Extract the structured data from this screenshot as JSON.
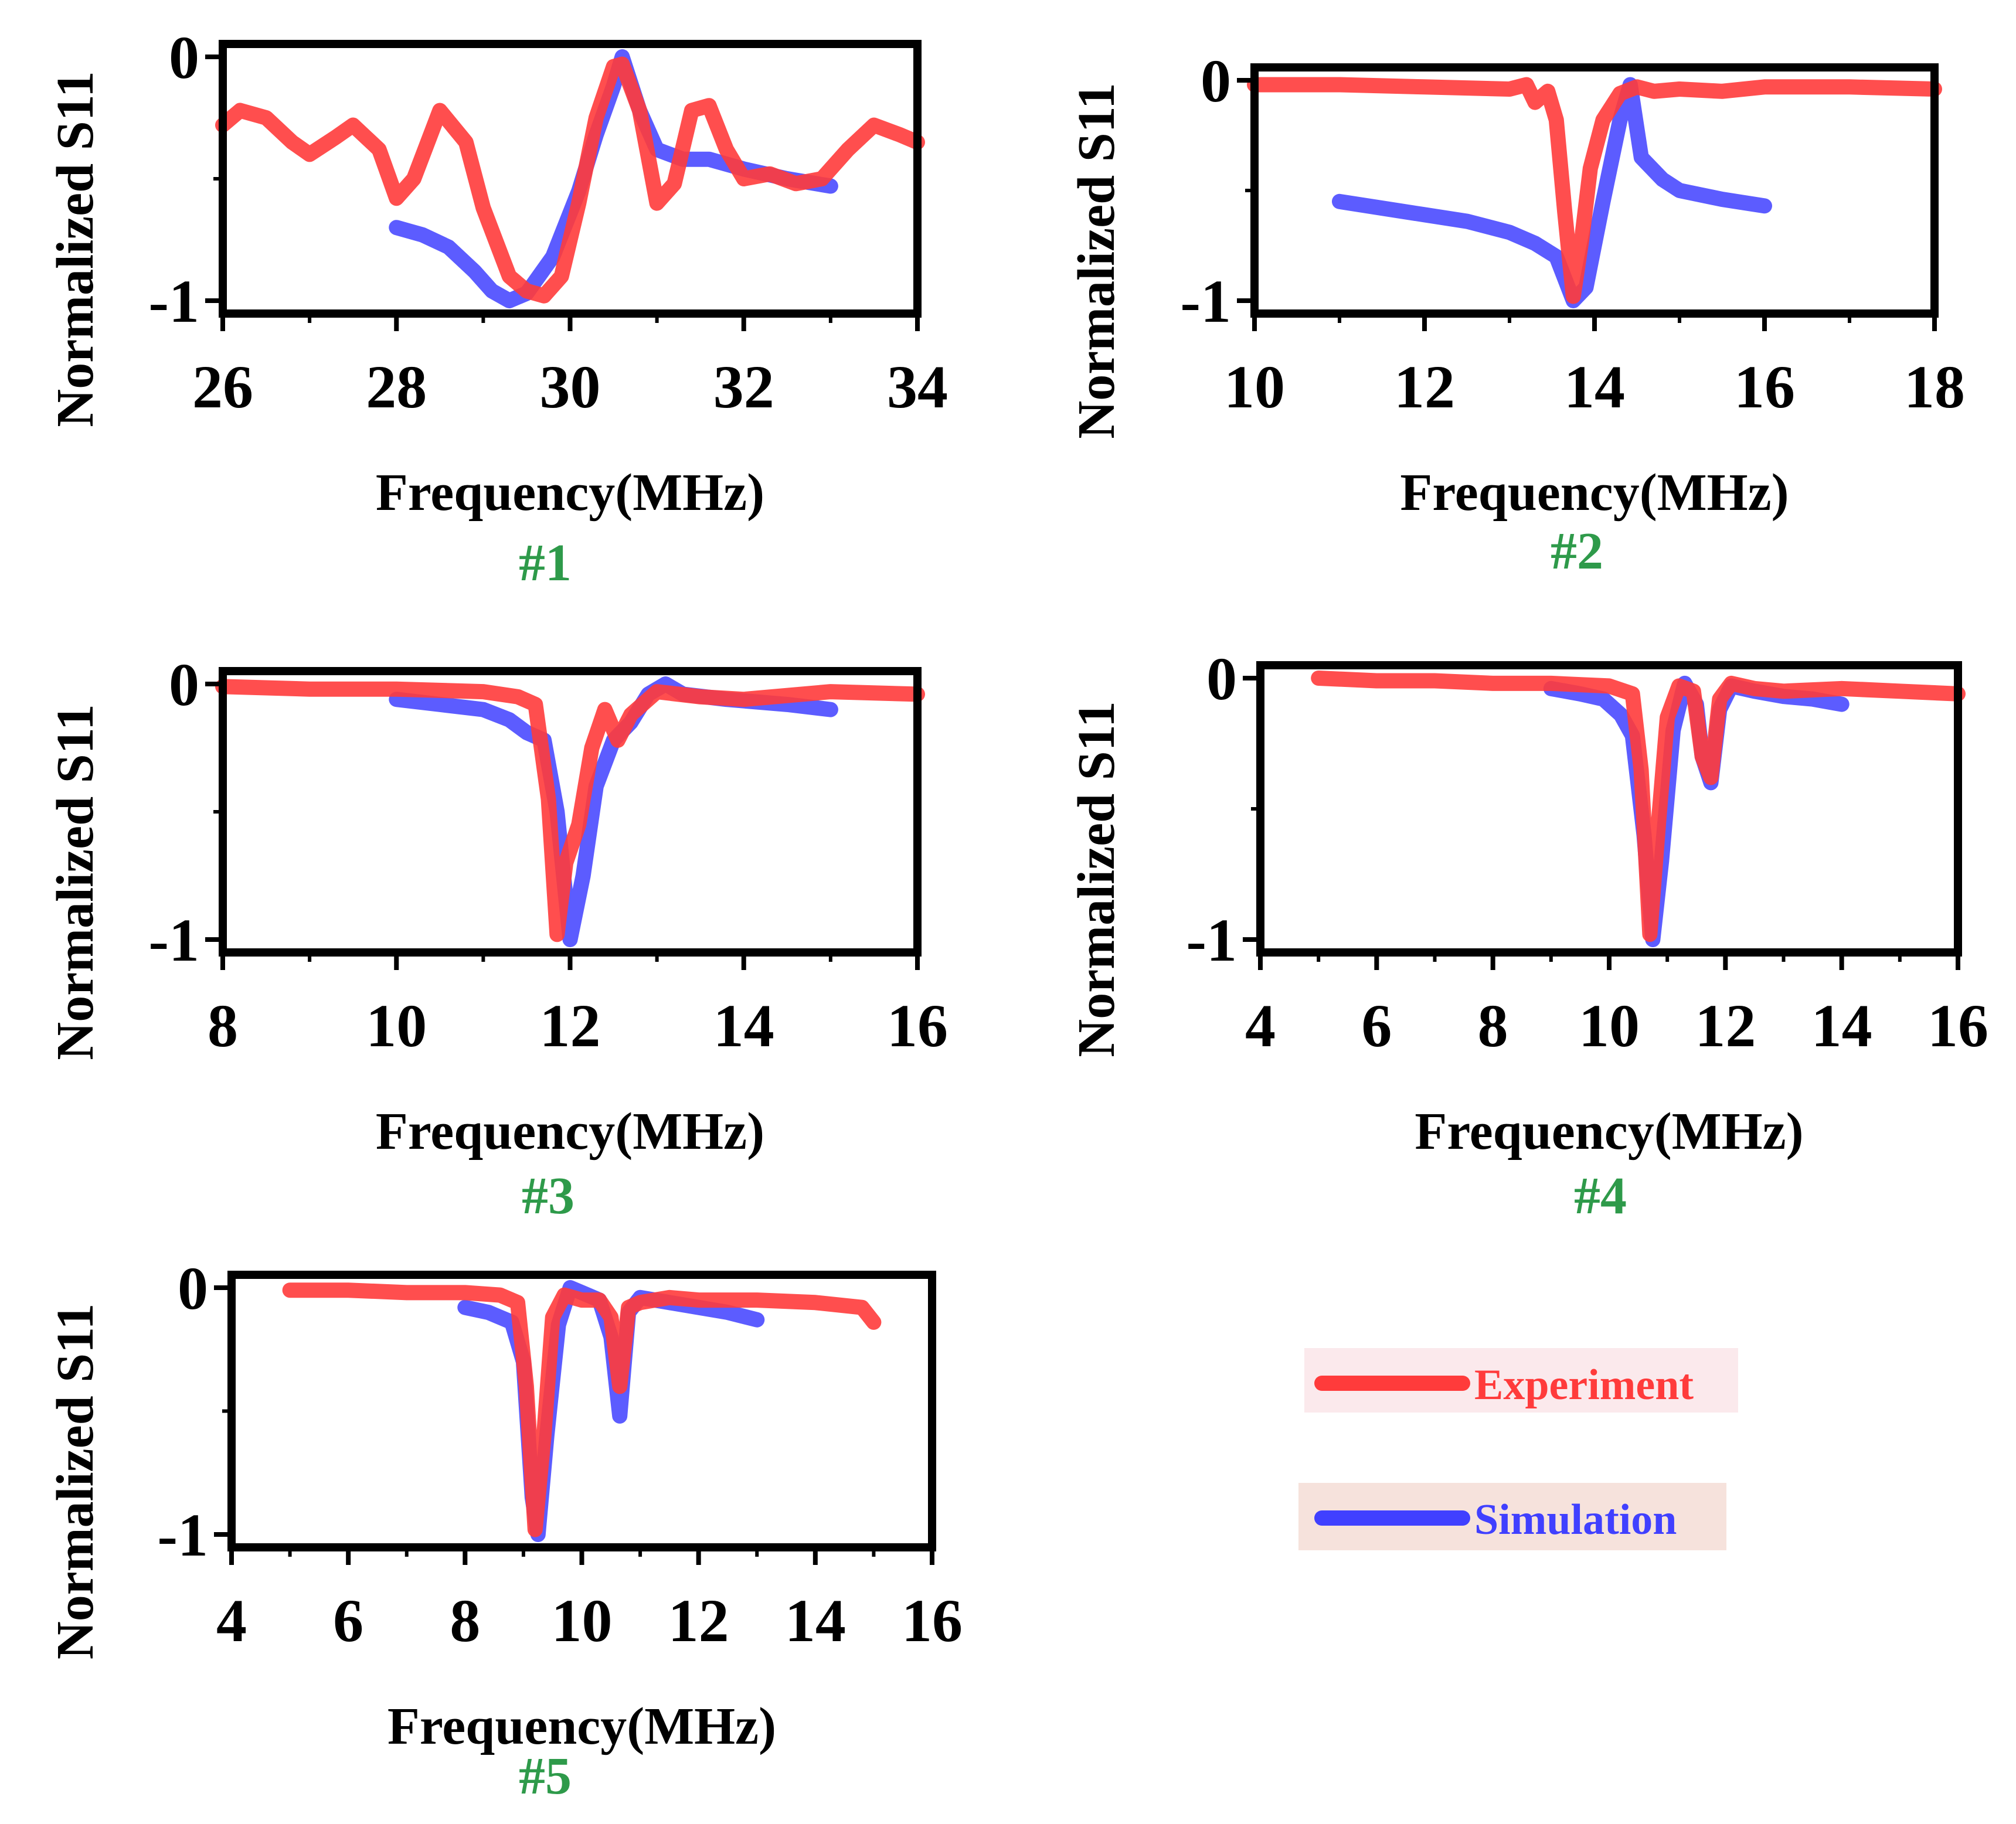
{
  "colors": {
    "experiment": "#ff3b3b",
    "simulation": "#4040ff",
    "panel_tag": "#2e9a4a",
    "axes": "#000000",
    "legend_exp_bg": "#fbe9ec",
    "legend_sim_bg": "#f6e2dc"
  },
  "legend": {
    "experiment_label": "Experiment",
    "simulation_label": "Simulation"
  },
  "chart_data": [
    {
      "type": "line",
      "panel_label": "#1",
      "xlabel": "Frequency(MHz)",
      "ylabel": "Normalized S11",
      "xlim": [
        26,
        34
      ],
      "ylim": [
        -1,
        0
      ],
      "xticks": [
        26,
        28,
        30,
        32,
        34
      ],
      "xtick_labels": [
        "26",
        "28",
        "30",
        "32",
        "34"
      ],
      "yticks": [
        0,
        -1
      ],
      "ytick_labels": [
        "0",
        "-1"
      ],
      "series": [
        {
          "name": "Experiment",
          "x": [
            26,
            26.2,
            26.5,
            26.8,
            27.0,
            27.3,
            27.5,
            27.8,
            28.0,
            28.2,
            28.5,
            28.8,
            29.0,
            29.3,
            29.5,
            29.7,
            29.9,
            30.1,
            30.3,
            30.5,
            30.6,
            30.8,
            31.0,
            31.2,
            31.4,
            31.6,
            31.8,
            32.0,
            32.3,
            32.6,
            32.9,
            33.2,
            33.5,
            33.8,
            34.0
          ],
          "y": [
            -0.28,
            -0.22,
            -0.25,
            -0.35,
            -0.4,
            -0.33,
            -0.28,
            -0.38,
            -0.58,
            -0.5,
            -0.22,
            -0.35,
            -0.62,
            -0.9,
            -0.96,
            -0.98,
            -0.9,
            -0.6,
            -0.25,
            -0.04,
            -0.03,
            -0.22,
            -0.6,
            -0.52,
            -0.22,
            -0.2,
            -0.38,
            -0.5,
            -0.48,
            -0.52,
            -0.5,
            -0.38,
            -0.28,
            -0.32,
            -0.35
          ]
        },
        {
          "name": "Simulation",
          "x": [
            28.0,
            28.3,
            28.6,
            28.9,
            29.1,
            29.3,
            29.5,
            29.8,
            30.1,
            30.3,
            30.5,
            30.6,
            30.8,
            31.0,
            31.3,
            31.6,
            32.0,
            32.5,
            33.0
          ],
          "y": [
            -0.7,
            -0.73,
            -0.78,
            -0.88,
            -0.96,
            -1.0,
            -0.97,
            -0.82,
            -0.55,
            -0.32,
            -0.12,
            0.0,
            -0.22,
            -0.38,
            -0.42,
            -0.42,
            -0.46,
            -0.5,
            -0.53
          ]
        }
      ]
    },
    {
      "type": "line",
      "panel_label": "#2",
      "xlabel": "Frequency(MHz)",
      "ylabel": "Normalized S11",
      "xlim": [
        10,
        18
      ],
      "ylim": [
        -1,
        0
      ],
      "xticks": [
        10,
        12,
        14,
        16,
        18
      ],
      "xtick_labels": [
        "10",
        "12",
        "14",
        "16",
        "18"
      ],
      "yticks": [
        0,
        -1
      ],
      "ytick_labels": [
        "0",
        "-1"
      ],
      "series": [
        {
          "name": "Experiment",
          "x": [
            10,
            11,
            12,
            13.0,
            13.2,
            13.3,
            13.45,
            13.55,
            13.65,
            13.75,
            13.85,
            13.95,
            14.1,
            14.3,
            14.5,
            14.7,
            15,
            15.5,
            16,
            17,
            18
          ],
          "y": [
            -0.02,
            -0.02,
            -0.03,
            -0.04,
            -0.02,
            -0.1,
            -0.05,
            -0.18,
            -0.6,
            -0.98,
            -0.72,
            -0.4,
            -0.18,
            -0.06,
            -0.03,
            -0.05,
            -0.04,
            -0.05,
            -0.03,
            -0.03,
            -0.04
          ]
        },
        {
          "name": "Simulation",
          "x": [
            11.0,
            11.5,
            12.0,
            12.5,
            13.0,
            13.3,
            13.55,
            13.75,
            13.9,
            14.1,
            14.3,
            14.42,
            14.55,
            14.8,
            15.0,
            15.5,
            16.0
          ],
          "y": [
            -0.55,
            -0.58,
            -0.61,
            -0.64,
            -0.69,
            -0.74,
            -0.8,
            -1.0,
            -0.94,
            -0.55,
            -0.18,
            -0.02,
            -0.35,
            -0.45,
            -0.5,
            -0.54,
            -0.57
          ]
        }
      ]
    },
    {
      "type": "line",
      "panel_label": "#3",
      "xlabel": "Frequency(MHz)",
      "ylabel": "Normalized S11",
      "xlim": [
        8,
        16
      ],
      "ylim": [
        -1,
        0
      ],
      "xticks": [
        8,
        10,
        12,
        14,
        16
      ],
      "xtick_labels": [
        "8",
        "10",
        "12",
        "14",
        "16"
      ],
      "yticks": [
        0,
        -1
      ],
      "ytick_labels": [
        "0",
        "-1"
      ],
      "series": [
        {
          "name": "Experiment",
          "x": [
            8,
            9,
            10,
            11,
            11.4,
            11.6,
            11.75,
            11.85,
            11.95,
            12.1,
            12.25,
            12.4,
            12.55,
            12.7,
            13.0,
            13.5,
            14,
            15,
            16
          ],
          "y": [
            -0.01,
            -0.02,
            -0.02,
            -0.03,
            -0.05,
            -0.08,
            -0.45,
            -0.98,
            -0.7,
            -0.55,
            -0.25,
            -0.1,
            -0.22,
            -0.12,
            -0.03,
            -0.05,
            -0.06,
            -0.03,
            -0.04
          ]
        },
        {
          "name": "Simulation",
          "x": [
            10.0,
            10.5,
            11.0,
            11.3,
            11.5,
            11.7,
            11.85,
            12.0,
            12.15,
            12.3,
            12.5,
            12.7,
            12.9,
            13.1,
            13.3,
            13.8,
            14.5,
            15.0
          ],
          "y": [
            -0.06,
            -0.08,
            -0.1,
            -0.14,
            -0.19,
            -0.22,
            -0.5,
            -1.0,
            -0.75,
            -0.4,
            -0.22,
            -0.15,
            -0.04,
            0.0,
            -0.04,
            -0.06,
            -0.08,
            -0.1
          ]
        }
      ]
    },
    {
      "type": "line",
      "panel_label": "#4",
      "xlabel": "Frequency(MHz)",
      "ylabel": "Normalized S11",
      "xlim": [
        4,
        16
      ],
      "ylim": [
        -1,
        0
      ],
      "xticks": [
        4,
        6,
        8,
        10,
        12,
        14,
        16
      ],
      "xtick_labels": [
        "4",
        "6",
        "8",
        "10",
        "12",
        "14",
        "16"
      ],
      "yticks": [
        0,
        -1
      ],
      "ytick_labels": [
        "0",
        "-1"
      ],
      "series": [
        {
          "name": "Experiment",
          "x": [
            5,
            6,
            7,
            8,
            9,
            10,
            10.4,
            10.55,
            10.7,
            10.85,
            11.0,
            11.2,
            11.45,
            11.6,
            11.75,
            11.9,
            12.1,
            12.5,
            13,
            14,
            15,
            16
          ],
          "y": [
            0.0,
            -0.01,
            -0.01,
            -0.02,
            -0.02,
            -0.03,
            -0.06,
            -0.35,
            -0.98,
            -0.55,
            -0.15,
            -0.03,
            -0.05,
            -0.3,
            -0.38,
            -0.08,
            -0.02,
            -0.04,
            -0.05,
            -0.04,
            -0.05,
            -0.06
          ]
        },
        {
          "name": "Simulation",
          "x": [
            9.0,
            9.5,
            9.9,
            10.2,
            10.4,
            10.6,
            10.75,
            10.9,
            11.1,
            11.3,
            11.5,
            11.6,
            11.75,
            11.9,
            12.1,
            12.5,
            13.0,
            13.5,
            14.0
          ],
          "y": [
            -0.04,
            -0.06,
            -0.08,
            -0.14,
            -0.22,
            -0.6,
            -1.0,
            -0.7,
            -0.2,
            -0.02,
            -0.1,
            -0.3,
            -0.4,
            -0.12,
            -0.03,
            -0.05,
            -0.07,
            -0.08,
            -0.1
          ]
        }
      ]
    },
    {
      "type": "line",
      "panel_label": "#5",
      "xlabel": "Frequency(MHz)",
      "ylabel": "Normalized S11",
      "xlim": [
        4,
        16
      ],
      "ylim": [
        -1,
        0
      ],
      "xticks": [
        4,
        6,
        8,
        10,
        12,
        14,
        16
      ],
      "xtick_labels": [
        "4",
        "6",
        "8",
        "10",
        "12",
        "14",
        "16"
      ],
      "yticks": [
        0,
        -1
      ],
      "ytick_labels": [
        "0",
        "-1"
      ],
      "series": [
        {
          "name": "Experiment",
          "x": [
            5,
            6,
            7,
            8,
            8.6,
            8.9,
            9.05,
            9.2,
            9.35,
            9.5,
            9.7,
            10.0,
            10.3,
            10.5,
            10.65,
            10.8,
            11.0,
            11.5,
            12,
            13,
            14,
            14.8,
            15.0
          ],
          "y": [
            -0.01,
            -0.01,
            -0.02,
            -0.02,
            -0.03,
            -0.06,
            -0.4,
            -0.98,
            -0.6,
            -0.12,
            -0.03,
            -0.05,
            -0.05,
            -0.12,
            -0.4,
            -0.08,
            -0.06,
            -0.04,
            -0.05,
            -0.05,
            -0.06,
            -0.08,
            -0.14
          ]
        },
        {
          "name": "Simulation",
          "x": [
            8.0,
            8.4,
            8.8,
            9.0,
            9.15,
            9.25,
            9.4,
            9.6,
            9.8,
            10.0,
            10.3,
            10.5,
            10.65,
            10.8,
            11.0,
            11.5,
            12.0,
            12.5,
            13.0
          ],
          "y": [
            -0.08,
            -0.1,
            -0.14,
            -0.3,
            -0.85,
            -1.0,
            -0.6,
            -0.15,
            0.0,
            -0.02,
            -0.05,
            -0.2,
            -0.52,
            -0.1,
            -0.04,
            -0.06,
            -0.08,
            -0.1,
            -0.13
          ]
        }
      ]
    }
  ]
}
